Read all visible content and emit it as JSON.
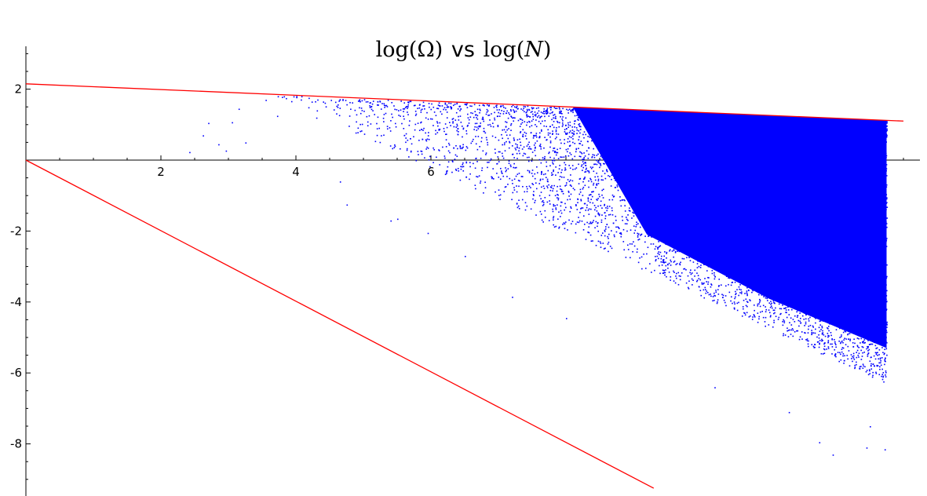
{
  "chart_data": {
    "type": "scatter",
    "title": {
      "left_func": "log",
      "left_arg": "Ω",
      "connector": "vs",
      "right_func": "log",
      "right_arg": "N"
    },
    "xlabel": "",
    "ylabel": "",
    "xlim": [
      0,
      13.25
    ],
    "ylim": [
      -9.25,
      3.2
    ],
    "grid": false,
    "x_ticks": [
      {
        "value": 2,
        "label": "2"
      },
      {
        "value": 4,
        "label": "4"
      },
      {
        "value": 6,
        "label": "6"
      }
    ],
    "y_ticks": [
      {
        "value": 2,
        "label": "2"
      },
      {
        "value": -2,
        "label": "-2"
      },
      {
        "value": -4,
        "label": "-4"
      },
      {
        "value": -6,
        "label": "-6"
      },
      {
        "value": -8,
        "label": "-8"
      }
    ],
    "series": [
      {
        "kind": "scatter",
        "color": "#0000ff",
        "x_range": [
          2.4,
          12.75
        ],
        "envelope_upper": {
          "intercept": 2.15,
          "slope": -0.0805
        },
        "lower_trend": {
          "intercept": 5.2,
          "slope": -0.9
        },
        "outlier_points": [
          [
            2.42,
            0.23
          ],
          [
            2.62,
            0.7
          ],
          [
            2.7,
            1.05
          ],
          [
            2.85,
            0.45
          ],
          [
            2.96,
            0.27
          ],
          [
            3.05,
            1.07
          ],
          [
            3.15,
            1.45
          ],
          [
            3.25,
            0.5
          ],
          [
            3.55,
            1.7
          ],
          [
            3.72,
            1.25
          ],
          [
            3.85,
            1.75
          ],
          [
            4.3,
            1.2
          ],
          [
            4.65,
            -0.6
          ],
          [
            4.75,
            -1.25
          ],
          [
            5.4,
            -1.7
          ],
          [
            5.5,
            -1.65
          ],
          [
            5.95,
            -2.05
          ],
          [
            6.5,
            -2.7
          ],
          [
            7.2,
            -3.85
          ],
          [
            8.0,
            -4.45
          ],
          [
            10.2,
            -6.4
          ],
          [
            11.3,
            -7.1
          ],
          [
            11.75,
            -7.95
          ],
          [
            11.95,
            -8.3
          ],
          [
            12.45,
            -8.1
          ],
          [
            12.72,
            -8.15
          ],
          [
            12.5,
            -7.5
          ]
        ]
      },
      {
        "kind": "line",
        "color": "#ff0000",
        "points": [
          [
            0,
            2.15
          ],
          [
            13.0,
            1.1
          ]
        ]
      },
      {
        "kind": "line",
        "color": "#ff0000",
        "points": [
          [
            0,
            0
          ],
          [
            9.3,
            -9.25
          ]
        ]
      }
    ]
  }
}
